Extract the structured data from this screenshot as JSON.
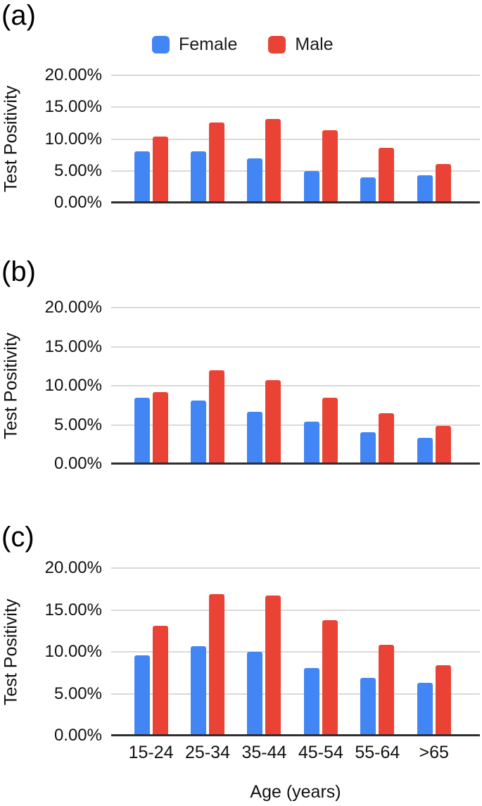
{
  "figure": {
    "background": "#ffffff"
  },
  "legend": {
    "items": [
      {
        "label": "Female",
        "color": "#4285F4"
      },
      {
        "label": "Male",
        "color": "#EA4335"
      }
    ]
  },
  "axes": {
    "y_title": "Test Positivity",
    "x_title": "Age (years)",
    "y_tick_labels": [
      "20.00%",
      "15.00%",
      "10.00%",
      "5.00%",
      "0.00%"
    ],
    "x_tick_labels": [
      "15-24",
      "25-34",
      "35-44",
      "45-54",
      "55-64",
      ">65"
    ]
  },
  "chart_data": [
    {
      "type": "bar",
      "panel": "(a)",
      "unit": "%",
      "ylabel": "Test Positivity",
      "xlabel": "Age (years)",
      "ylim": [
        0,
        20
      ],
      "yticks": [
        0,
        5,
        10,
        15,
        20
      ],
      "grid": true,
      "legend_position": "top",
      "categories": [
        "15-24",
        "25-34",
        "35-44",
        "45-54",
        "55-64",
        ">65"
      ],
      "series": [
        {
          "name": "Female",
          "color": "#4285F4",
          "values": [
            8.1,
            8.1,
            7.0,
            5.0,
            4.0,
            4.3
          ]
        },
        {
          "name": "Male",
          "color": "#EA4335",
          "values": [
            10.4,
            12.6,
            13.1,
            11.4,
            8.6,
            6.1
          ]
        }
      ]
    },
    {
      "type": "bar",
      "panel": "(b)",
      "unit": "%",
      "ylabel": "Test Positivity",
      "xlabel": "Age (years)",
      "ylim": [
        0,
        20
      ],
      "yticks": [
        0,
        5,
        10,
        15,
        20
      ],
      "grid": true,
      "legend_position": "none",
      "categories": [
        "15-24",
        "25-34",
        "35-44",
        "45-54",
        "55-64",
        ">65"
      ],
      "series": [
        {
          "name": "Female",
          "color": "#4285F4",
          "values": [
            8.5,
            8.1,
            6.7,
            5.4,
            4.1,
            3.3
          ]
        },
        {
          "name": "Male",
          "color": "#EA4335",
          "values": [
            9.2,
            12.0,
            10.7,
            8.5,
            6.5,
            4.9
          ]
        }
      ]
    },
    {
      "type": "bar",
      "panel": "(c)",
      "unit": "%",
      "ylabel": "Test Positivity",
      "xlabel": "Age (years)",
      "ylim": [
        0,
        20
      ],
      "yticks": [
        0,
        5,
        10,
        15,
        20
      ],
      "grid": true,
      "legend_position": "none",
      "categories": [
        "15-24",
        "25-34",
        "35-44",
        "45-54",
        "55-64",
        ">65"
      ],
      "series": [
        {
          "name": "Female",
          "color": "#4285F4",
          "values": [
            9.6,
            10.7,
            10.0,
            8.1,
            6.9,
            6.3
          ]
        },
        {
          "name": "Male",
          "color": "#EA4335",
          "values": [
            13.1,
            16.9,
            16.7,
            13.8,
            10.8,
            8.4
          ]
        }
      ]
    }
  ]
}
